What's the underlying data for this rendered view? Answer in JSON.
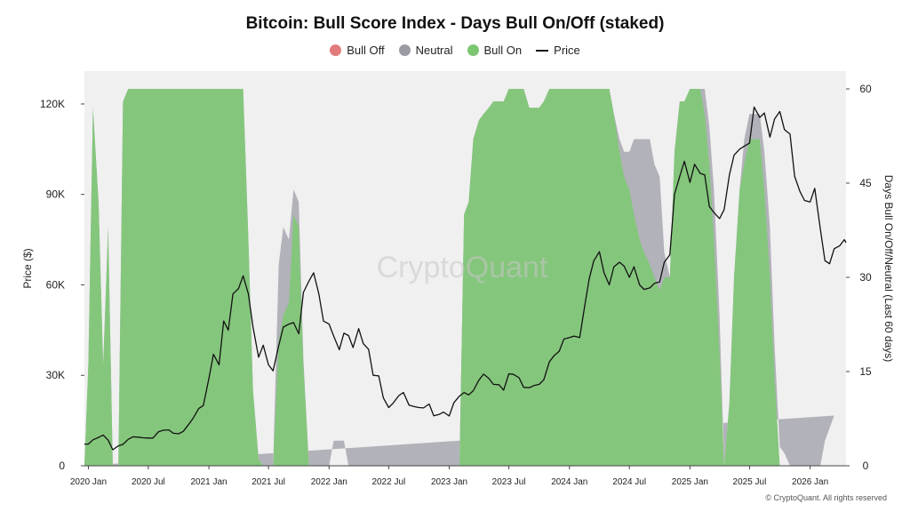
{
  "chart_data": {
    "type": "area",
    "title": "Bitcoin: Bull Score Index - Days Bull On/Off (staked)",
    "ylabel_left": "Price ($)",
    "ylabel_right": "Days Bull On/Off/Neutral (Last 60 days)",
    "left_ticks": [
      "0",
      "30K",
      "60K",
      "90K",
      "120K"
    ],
    "right_ticks": [
      "0",
      "15",
      "30",
      "45",
      "60"
    ],
    "x_ticks": [
      "2020 Jan",
      "2020 Jul",
      "2021 Jan",
      "2021 Jul",
      "2022 Jan",
      "2022 Jul",
      "2023 Jan",
      "2023 Jul",
      "2024 Jan",
      "2024 Jul",
      "2025 Jan",
      "2025 Jul",
      "2026 Jan"
    ],
    "ylim_left": [
      0,
      125000
    ],
    "ylim_right": [
      0,
      60
    ],
    "xlim": [
      "2019-12-20",
      "2026-04-20"
    ],
    "legend": [
      {
        "name": "Bull Off",
        "color": "#e27c7c",
        "kind": "dot"
      },
      {
        "name": "Neutral",
        "color": "#9a9aa2",
        "kind": "dot"
      },
      {
        "name": "Bull On",
        "color": "#7cc672",
        "kind": "dot"
      },
      {
        "name": "Price",
        "color": "#111111",
        "kind": "line"
      }
    ],
    "series_colors": {
      "bull_on": "#85c67d",
      "neutral": "#b2b2ba",
      "bull_off": "#e38a8a",
      "price": "#111111"
    },
    "watermark": "CryptoQuant",
    "series": {
      "dates": [
        "2019-12-20",
        "2020-01-01",
        "2020-01-15",
        "2020-02-01",
        "2020-02-15",
        "2020-03-01",
        "2020-03-15",
        "2020-04-01",
        "2020-04-15",
        "2020-05-01",
        "2020-05-15",
        "2020-06-01",
        "2020-06-15",
        "2020-07-01",
        "2020-07-15",
        "2020-08-01",
        "2020-08-15",
        "2020-09-01",
        "2020-09-15",
        "2020-10-01",
        "2020-10-15",
        "2020-11-01",
        "2020-11-15",
        "2020-12-01",
        "2020-12-15",
        "2021-01-01",
        "2021-01-15",
        "2021-02-01",
        "2021-02-15",
        "2021-03-01",
        "2021-03-15",
        "2021-04-01",
        "2021-04-15",
        "2021-05-01",
        "2021-05-15",
        "2021-06-01",
        "2021-06-15",
        "2021-07-01",
        "2021-07-15",
        "2021-08-01",
        "2021-08-15",
        "2021-09-01",
        "2021-09-15",
        "2021-10-01",
        "2021-10-15",
        "2021-11-01",
        "2021-11-15",
        "2021-12-01",
        "2021-12-15",
        "2022-01-01",
        "2022-01-15",
        "2022-02-01",
        "2022-02-15",
        "2022-03-01",
        "2022-03-15",
        "2022-04-01",
        "2022-04-15",
        "2022-05-01",
        "2022-05-15",
        "2022-06-01",
        "2022-06-15",
        "2022-07-01",
        "2022-07-15",
        "2022-08-01",
        "2022-08-15",
        "2022-09-01",
        "2022-09-15",
        "2022-10-01",
        "2022-10-15",
        "2022-11-01",
        "2022-11-15",
        "2022-12-01",
        "2022-12-15",
        "2023-01-01",
        "2023-01-15",
        "2023-02-01",
        "2023-02-15",
        "2023-03-01",
        "2023-03-15",
        "2023-04-01",
        "2023-04-15",
        "2023-05-01",
        "2023-05-15",
        "2023-06-01",
        "2023-06-15",
        "2023-07-01",
        "2023-07-15",
        "2023-08-01",
        "2023-08-15",
        "2023-09-01",
        "2023-09-15",
        "2023-10-01",
        "2023-10-15",
        "2023-11-01",
        "2023-11-15",
        "2023-12-01",
        "2023-12-15",
        "2024-01-01",
        "2024-01-15",
        "2024-02-01",
        "2024-02-15",
        "2024-03-01",
        "2024-03-15",
        "2024-04-01",
        "2024-04-15",
        "2024-05-01",
        "2024-05-15",
        "2024-06-01",
        "2024-06-15",
        "2024-07-01",
        "2024-07-15",
        "2024-08-01",
        "2024-08-15",
        "2024-09-01",
        "2024-09-15",
        "2024-10-01",
        "2024-10-15",
        "2024-11-01",
        "2024-11-15",
        "2024-12-01",
        "2024-12-15",
        "2025-01-01",
        "2025-01-15",
        "2025-02-01",
        "2025-02-15",
        "2025-03-01",
        "2025-03-15",
        "2025-04-01",
        "2025-04-15",
        "2025-05-01",
        "2025-05-15",
        "2025-06-01",
        "2025-06-15",
        "2025-07-01",
        "2025-07-15",
        "2025-08-01",
        "2025-08-15",
        "2025-09-01",
        "2025-09-15",
        "2025-10-01",
        "2025-10-15",
        "2025-11-01",
        "2025-11-15",
        "2025-12-01",
        "2025-12-15",
        "2026-01-01",
        "2026-01-15",
        "2026-02-01",
        "2026-02-15",
        "2026-03-01",
        "2026-03-15",
        "2026-04-01",
        "2026-04-15",
        "2026-04-20"
      ],
      "bull_on": [
        0,
        16,
        57,
        42,
        16,
        38,
        0,
        0,
        58,
        60,
        60,
        60,
        60,
        60,
        60,
        60,
        60,
        60,
        60,
        60,
        60,
        60,
        60,
        60,
        60,
        60,
        60,
        60,
        60,
        60,
        60,
        60,
        60,
        36,
        12,
        1,
        0,
        0,
        0,
        20,
        24,
        26,
        40,
        38,
        16,
        0,
        0,
        0,
        0,
        0,
        0,
        0,
        0,
        0,
        0,
        0,
        0,
        0,
        0,
        0,
        0,
        0,
        0,
        0,
        0,
        0,
        0,
        0,
        0,
        0,
        0,
        0,
        0,
        0,
        0,
        0,
        40,
        42,
        52,
        55,
        56,
        57,
        58,
        58,
        58,
        60,
        60,
        60,
        60,
        57,
        57,
        57,
        58,
        60,
        60,
        60,
        60,
        60,
        60,
        60,
        60,
        60,
        60,
        60,
        60,
        60,
        56,
        50,
        46,
        44,
        40,
        36,
        34,
        32,
        30,
        28,
        30,
        30,
        50,
        58,
        58,
        60,
        60,
        60,
        56,
        48,
        36,
        18,
        0,
        10,
        30,
        44,
        48,
        52,
        52,
        52,
        44,
        30,
        14,
        0,
        0,
        0,
        0,
        0,
        0,
        0,
        0,
        0,
        0,
        0,
        0
      ],
      "neutral": [
        0,
        0,
        0,
        0,
        0,
        0,
        0,
        0,
        0,
        0,
        0,
        0,
        0,
        0,
        0,
        0,
        0,
        0,
        0,
        0,
        0,
        0,
        0,
        0,
        0,
        0,
        0,
        0,
        0,
        0,
        0,
        0,
        0,
        0,
        0,
        0,
        0,
        0,
        0,
        12,
        14,
        10,
        4,
        4,
        1,
        0,
        0,
        0,
        0,
        0,
        4,
        4,
        4,
        0,
        0,
        0,
        0,
        0,
        0,
        0,
        0,
        0,
        0,
        0,
        0,
        0,
        0,
        0,
        0,
        0,
        0,
        0,
        0,
        0,
        0,
        0,
        0,
        0,
        0,
        0,
        0,
        0,
        0,
        0,
        0,
        0,
        0,
        0,
        0,
        0,
        0,
        0,
        0,
        0,
        0,
        0,
        0,
        0,
        0,
        0,
        0,
        0,
        0,
        0,
        0,
        0,
        0,
        2,
        4,
        6,
        12,
        16,
        18,
        20,
        18,
        18,
        4,
        0,
        0,
        0,
        0,
        0,
        0,
        0,
        4,
        6,
        8,
        6,
        0,
        0,
        0,
        0,
        4,
        4,
        4,
        4,
        6,
        8,
        5,
        3,
        2,
        0,
        0,
        0,
        0,
        0,
        0,
        0,
        4,
        6,
        8,
        8
      ],
      "price": [
        7200,
        7200,
        8600,
        9400,
        10200,
        8500,
        5300,
        6600,
        7100,
        8800,
        9600,
        9500,
        9300,
        9200,
        9200,
        11300,
        11800,
        11900,
        10800,
        10600,
        11400,
        13800,
        15900,
        19000,
        20000,
        29000,
        37000,
        33500,
        48000,
        45000,
        57000,
        58800,
        63000,
        57000,
        46000,
        36000,
        40000,
        33500,
        31500,
        39800,
        46000,
        47000,
        47500,
        43800,
        57500,
        61300,
        64000,
        57000,
        48000,
        47000,
        43000,
        38500,
        44000,
        43200,
        39200,
        45500,
        40500,
        38600,
        30000,
        29800,
        22500,
        19300,
        20800,
        23300,
        24300,
        20100,
        19700,
        19300,
        19200,
        20500,
        16600,
        17000,
        17800,
        16500,
        20900,
        23100,
        24300,
        23500,
        24900,
        28400,
        30400,
        29000,
        27000,
        26900,
        25100,
        30500,
        30300,
        29200,
        26000,
        25900,
        26600,
        27000,
        28500,
        34500,
        36500,
        38000,
        42000,
        42500,
        43000,
        42500,
        52000,
        62000,
        68000,
        71000,
        64000,
        60000,
        66000,
        67500,
        66200,
        62500,
        66000,
        60000,
        58500,
        59000,
        60500,
        61000,
        67500,
        70000,
        90000,
        96000,
        101000,
        94000,
        100000,
        97000,
        96500,
        86000,
        84000,
        82000,
        85000,
        96500,
        103000,
        105000,
        106000,
        107000,
        119000,
        115500,
        117000,
        109000,
        115000,
        117500,
        111500,
        110000,
        96000,
        91000,
        88000,
        87500,
        92000,
        78500,
        68000,
        67000,
        72000,
        73000,
        75000,
        74000
      ]
    }
  }
}
